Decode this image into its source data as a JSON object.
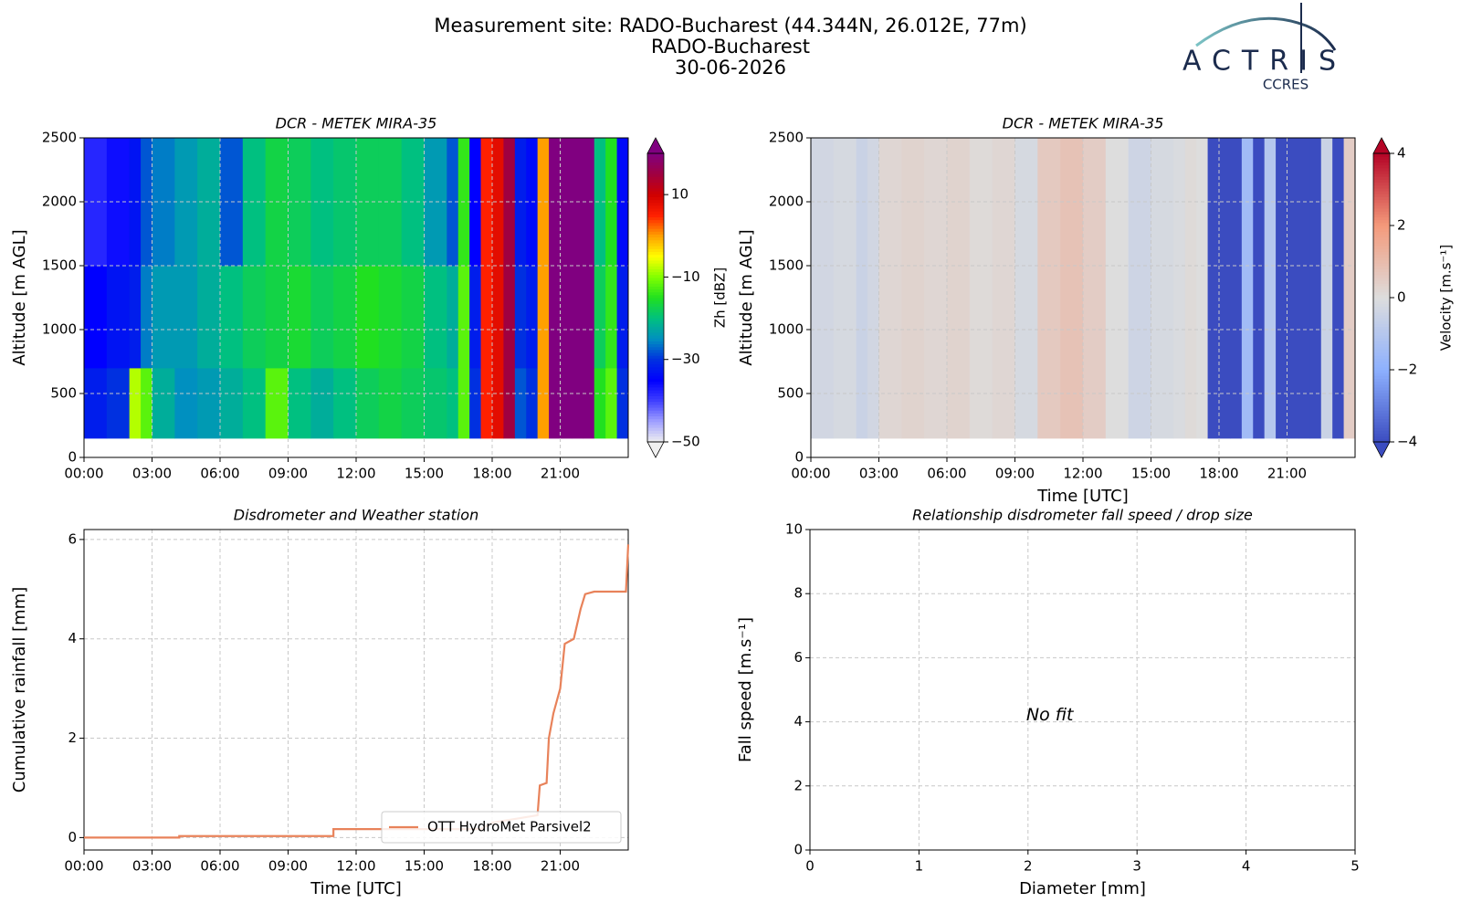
{
  "header": {
    "title": [
      "Measurement site: RADO-Bucharest (44.344N, 26.012E, 77m)",
      "RADO-Bucharest",
      "30-06-2026"
    ],
    "logo": {
      "name": "ACTRIS",
      "subtitle": "CCRES"
    }
  },
  "chart_data": [
    {
      "type": "heatmap",
      "title": "DCR - METEK MIRA-35",
      "ylabel": "Altitude [m AGL]",
      "grid": true,
      "xlim": [
        0,
        24
      ],
      "xticks": [
        {
          "value": 0,
          "label": "00:00"
        },
        {
          "value": 3,
          "label": "03:00"
        },
        {
          "value": 6,
          "label": "06:00"
        },
        {
          "value": 9,
          "label": "09:00"
        },
        {
          "value": 12,
          "label": "12:00"
        },
        {
          "value": 15,
          "label": "15:00"
        },
        {
          "value": 18,
          "label": "18:00"
        },
        {
          "value": 21,
          "label": "21:00"
        }
      ],
      "ylim": [
        0,
        2500
      ],
      "yticks": [
        0,
        500,
        1000,
        1500,
        2000,
        2500
      ],
      "x_edges": [
        0,
        1,
        2,
        2.5,
        3,
        4,
        5,
        6,
        7,
        8,
        9,
        10,
        11,
        12,
        13,
        14,
        15,
        16,
        16.5,
        17,
        17.5,
        18,
        18.5,
        19,
        19.5,
        20,
        20.5,
        21,
        21.5,
        22,
        22.5,
        23,
        23.5,
        24
      ],
      "y_edges": [
        150,
        700,
        1500,
        2500
      ],
      "z": [
        [
          -32,
          -30,
          -8,
          -12,
          -22,
          -25,
          -24,
          -22,
          -20,
          -12,
          -20,
          -22,
          -20,
          -18,
          -17,
          -18,
          -19,
          -20,
          -12,
          -30,
          5,
          8,
          15,
          -28,
          -30,
          0,
          20,
          20,
          20,
          20,
          -15,
          -12,
          -30
        ],
        [
          -35,
          -33,
          -32,
          -26,
          -24,
          -24,
          -22,
          -20,
          -18,
          -17,
          -16,
          -18,
          -17,
          -15,
          -16,
          -17,
          -20,
          -22,
          -12,
          -32,
          5,
          8,
          15,
          -30,
          -32,
          0,
          20,
          20,
          20,
          20,
          -18,
          -14,
          -32
        ],
        [
          -38,
          -36,
          -33,
          -28,
          -26,
          -24,
          -22,
          -28,
          -20,
          -17,
          -18,
          -20,
          -19,
          -18,
          -18,
          -20,
          -24,
          -28,
          -14,
          -35,
          5,
          8,
          15,
          -32,
          -34,
          0,
          20,
          20,
          20,
          20,
          -20,
          -15,
          -34
        ]
      ],
      "colorbar": {
        "label": "Zh [dBZ]",
        "lim": [
          -50,
          20
        ],
        "ticks": [
          {
            "value": -50,
            "label": "−50"
          },
          {
            "value": -30,
            "label": "−30"
          },
          {
            "value": -10,
            "label": "−10"
          },
          10
        ],
        "colormap": [
          "#f0f0f0",
          "#a0a0ff",
          "#4040ff",
          "#0000ff",
          "#0030e0",
          "#0090c0",
          "#00c080",
          "#20e020",
          "#80ff00",
          "#ffff00",
          "#ffa000",
          "#ff2000",
          "#d00000",
          "#a00040",
          "#800080"
        ]
      }
    },
    {
      "type": "heatmap",
      "title": "DCR - METEK MIRA-35",
      "ylabel": "Altitude [m AGL]",
      "xlabel": "Time [UTC]",
      "grid": true,
      "xlim": [
        0,
        24
      ],
      "xticks": [
        {
          "value": 0,
          "label": "00:00"
        },
        {
          "value": 3,
          "label": "03:00"
        },
        {
          "value": 6,
          "label": "06:00"
        },
        {
          "value": 9,
          "label": "09:00"
        },
        {
          "value": 12,
          "label": "12:00"
        },
        {
          "value": 15,
          "label": "15:00"
        },
        {
          "value": 18,
          "label": "18:00"
        },
        {
          "value": 21,
          "label": "21:00"
        }
      ],
      "ylim": [
        0,
        2500
      ],
      "yticks": [
        0,
        500,
        1000,
        1500,
        2000,
        2500
      ],
      "x_edges": [
        0,
        1,
        2,
        2.5,
        3,
        4,
        5,
        6,
        7,
        8,
        9,
        10,
        11,
        12,
        13,
        14,
        15,
        16,
        16.5,
        17,
        17.5,
        18,
        18.5,
        19,
        19.5,
        20,
        20.5,
        21,
        21.5,
        22,
        22.5,
        23,
        23.5,
        24
      ],
      "y_edges": [
        150,
        2500
      ],
      "z": [
        [
          -0.3,
          -0.2,
          -0.5,
          -0.3,
          0.2,
          0.3,
          0.2,
          0.3,
          0.1,
          0.2,
          -0.2,
          0.6,
          0.8,
          0.5,
          0,
          -0.4,
          -0.2,
          -0.1,
          0.1,
          0,
          -4,
          -4,
          -4,
          -1.5,
          -4,
          -1,
          -4,
          -4,
          -4,
          -4,
          -0.5,
          -4,
          0.5
        ]
      ],
      "colorbar": {
        "label": "Velocity [m.s⁻¹]",
        "lim": [
          -4,
          4
        ],
        "ticks": [
          {
            "value": -4,
            "label": "−4"
          },
          {
            "value": -2,
            "label": "−2"
          },
          0,
          2,
          4
        ],
        "colormap": [
          "#3b4cc0",
          "#8db0fe",
          "#dddddd",
          "#f49a7b",
          "#b40426"
        ]
      }
    },
    {
      "type": "line",
      "title": "Disdrometer and Weather station",
      "xlabel": "Time [UTC]",
      "ylabel": "Cumulative rainfall [mm]",
      "grid": true,
      "legend": "lower right",
      "xlim": [
        0,
        24
      ],
      "xticks": [
        {
          "value": 0,
          "label": "00:00"
        },
        {
          "value": 3,
          "label": "03:00"
        },
        {
          "value": 6,
          "label": "06:00"
        },
        {
          "value": 9,
          "label": "09:00"
        },
        {
          "value": 12,
          "label": "12:00"
        },
        {
          "value": 15,
          "label": "15:00"
        },
        {
          "value": 18,
          "label": "18:00"
        },
        {
          "value": 21,
          "label": "21:00"
        }
      ],
      "ylim": [
        -0.25,
        6.2
      ],
      "yticks": [
        0,
        2,
        4,
        6
      ],
      "series": [
        {
          "name": "OTT HydroMet Parsivel2",
          "color": "#e8825a",
          "x": [
            0,
            4.2,
            4.2,
            11,
            11,
            17.5,
            18,
            20,
            20.1,
            20.4,
            20.5,
            20.7,
            21.0,
            21.2,
            21.6,
            21.9,
            22.1,
            22.5,
            23.9,
            24
          ],
          "values": [
            0,
            0,
            0.03,
            0.03,
            0.17,
            0.17,
            0.3,
            0.45,
            1.05,
            1.1,
            2.0,
            2.5,
            3.0,
            3.9,
            4.0,
            4.6,
            4.9,
            4.95,
            4.95,
            5.9
          ]
        }
      ]
    },
    {
      "type": "scatter",
      "title": "Relationship disdrometer fall speed / drop size",
      "xlabel": "Diameter [mm]",
      "ylabel": "Fall speed [m.s⁻¹]",
      "grid": true,
      "xlim": [
        0,
        5
      ],
      "xticks": [
        0,
        1,
        2,
        3,
        4,
        5
      ],
      "ylim": [
        0,
        10
      ],
      "yticks": [
        0,
        2,
        4,
        6,
        8,
        10
      ],
      "annotation": "No fit",
      "series": []
    }
  ]
}
